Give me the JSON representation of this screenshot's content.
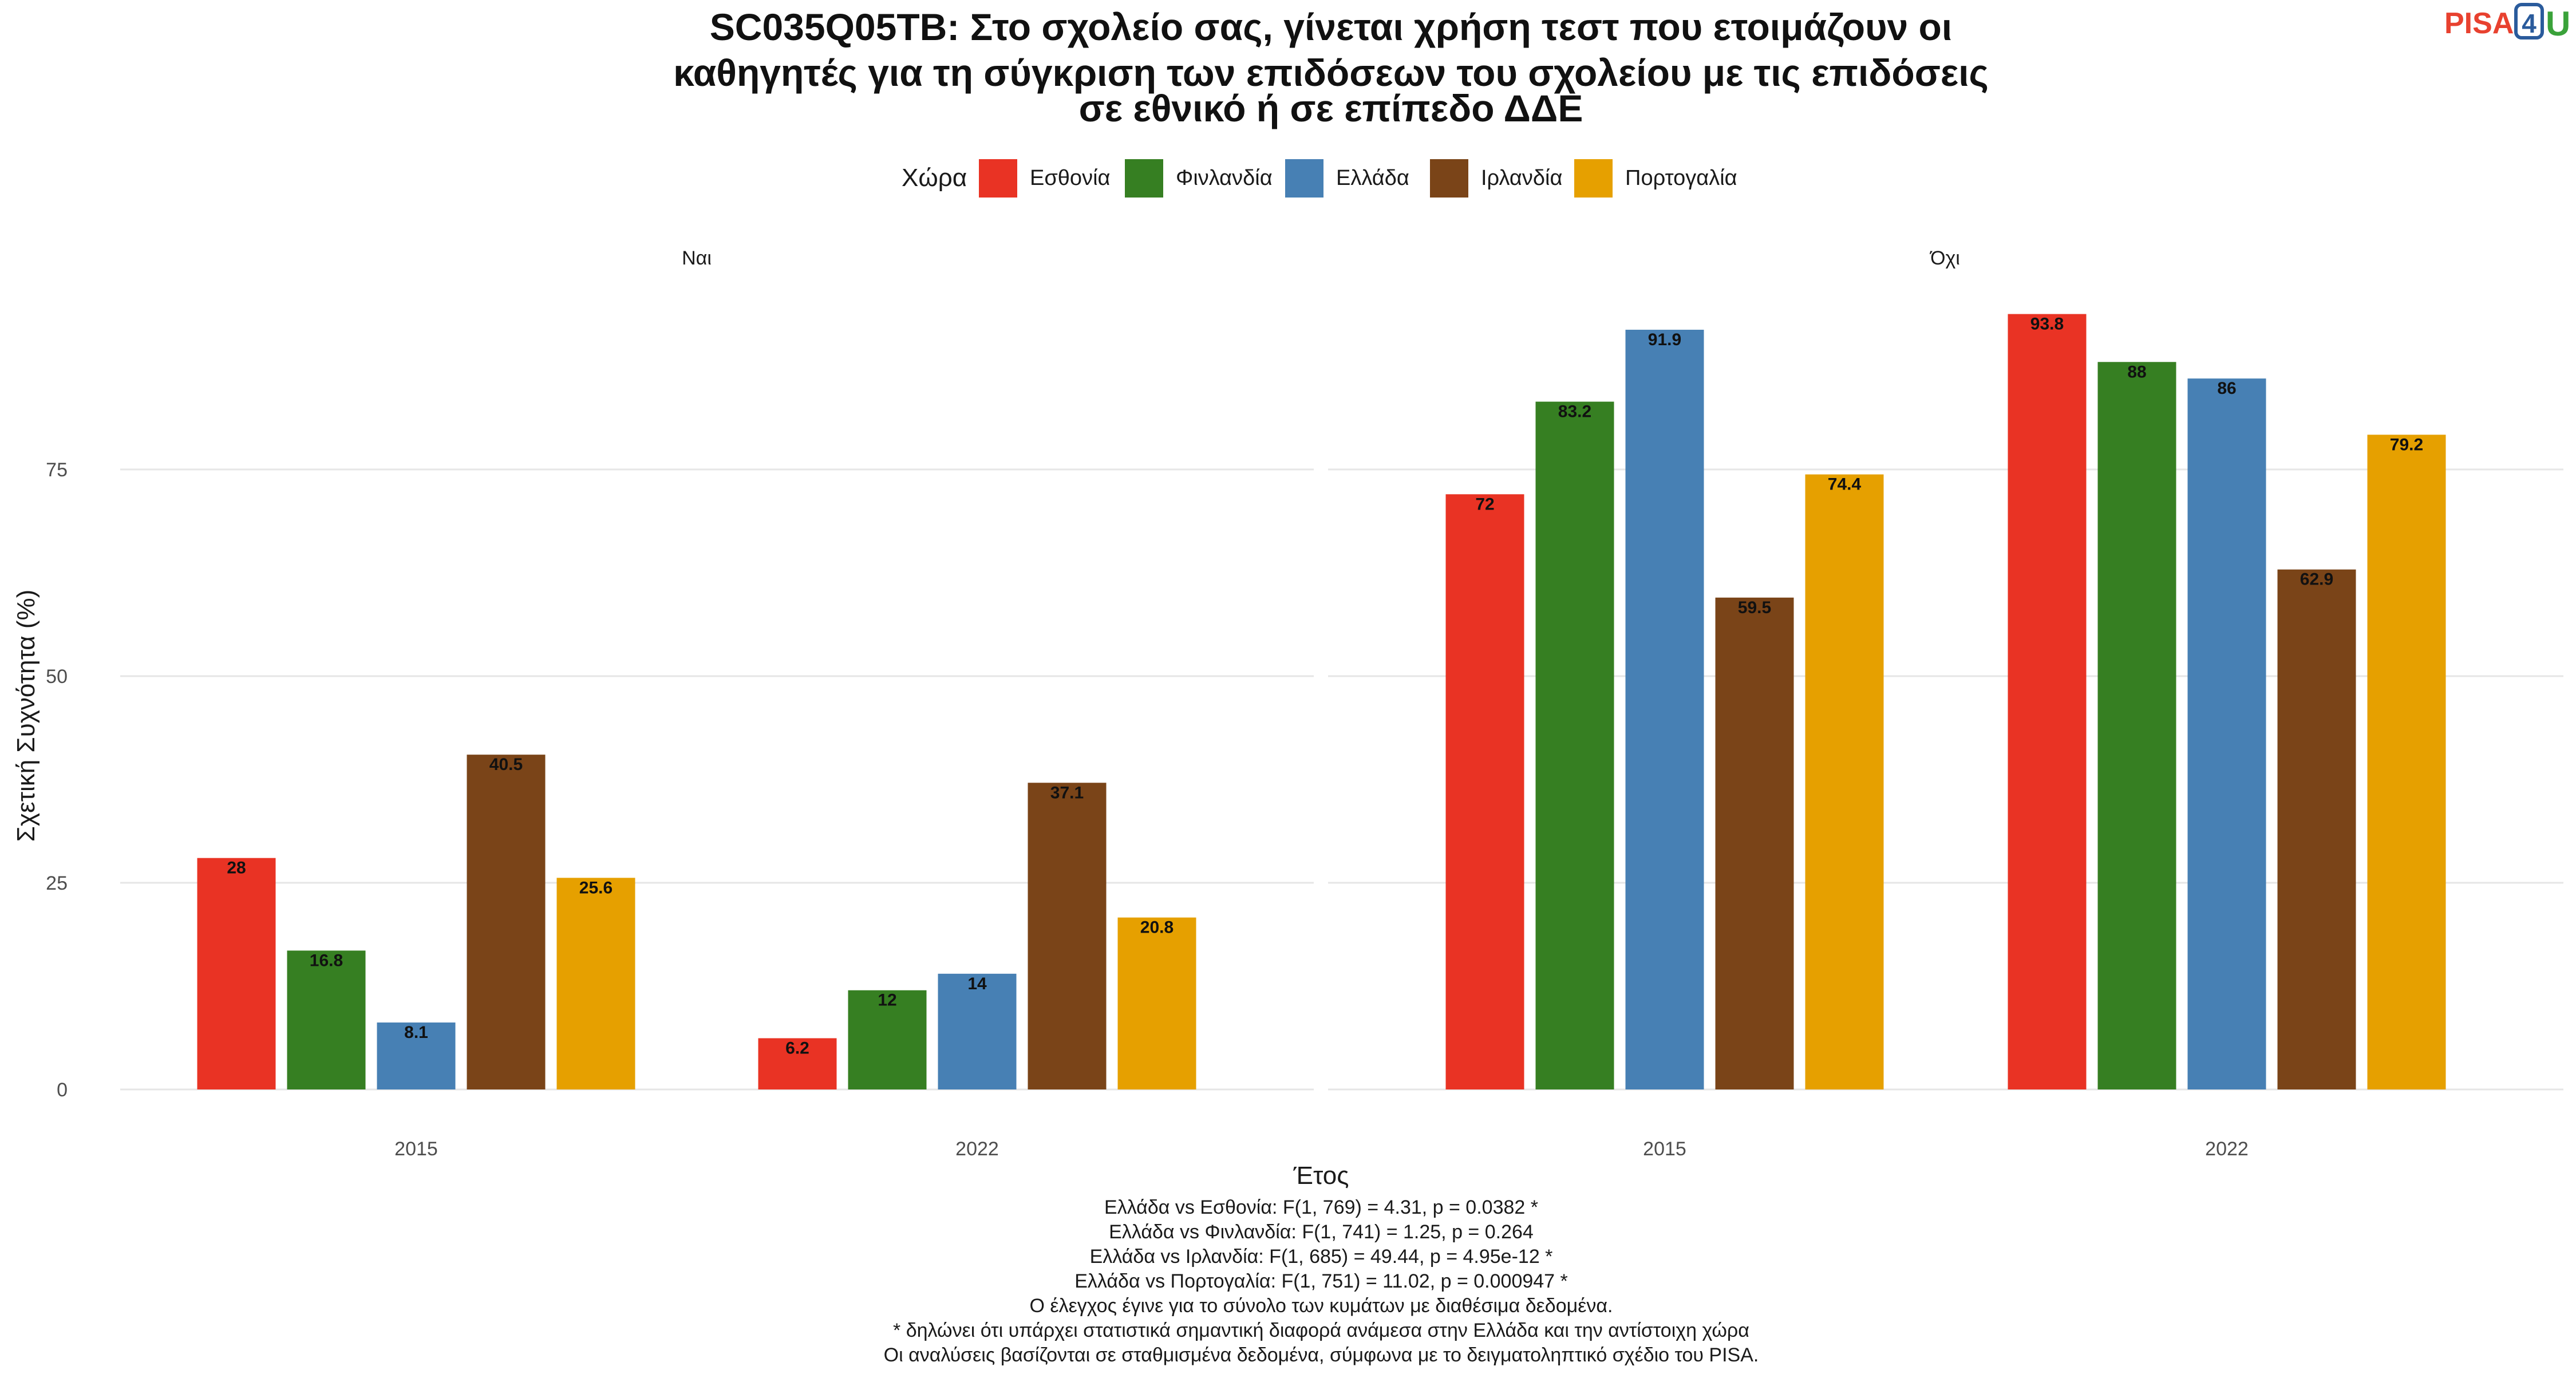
{
  "title_lines": [
    "SC035Q05TB: Στο σχολείο σας, γίνεται χρήση τεστ που ετοιμάζουν οι",
    "καθηγητές για τη σύγκριση των επιδόσεων του σχολείου με τις επιδόσεις",
    "σε εθνικό ή σε επίπεδο ΔΔΕ"
  ],
  "logo": {
    "text_left": "PISA",
    "text_box": "4",
    "text_right": "U",
    "colors": {
      "left": "#e8412f",
      "box": "#2a5b9c",
      "right": "#3aa23a"
    }
  },
  "legend": {
    "title": "Χώρα",
    "placement": "top"
  },
  "chart_data": {
    "type": "bar",
    "facets": [
      "Ναι",
      "Όχι"
    ],
    "categories": [
      "2015",
      "2022"
    ],
    "xlabel": "Έτος",
    "ylabel": "Σχετική Συχνότητα (%)",
    "yticks": [
      0,
      25,
      50,
      75
    ],
    "ylim": [
      0,
      98.5
    ],
    "grid": true,
    "series": [
      {
        "name": "Εσθονία",
        "color": "#e93324",
        "values": {
          "Ναι": [
            28,
            6.2
          ],
          "Όχι": [
            72,
            93.8
          ]
        },
        "labels": {
          "Ναι": [
            "28",
            "6.2"
          ],
          "Όχι": [
            "72",
            "93.8"
          ]
        }
      },
      {
        "name": "Φινλανδία",
        "color": "#367f22",
        "values": {
          "Ναι": [
            16.8,
            12
          ],
          "Όχι": [
            83.2,
            88
          ]
        },
        "labels": {
          "Ναι": [
            "16.8",
            "12"
          ],
          "Όχι": [
            "83.2",
            "88"
          ]
        }
      },
      {
        "name": "Ελλάδα",
        "color": "#4780b4",
        "values": {
          "Ναι": [
            8.1,
            14
          ],
          "Όχι": [
            91.9,
            86
          ]
        },
        "labels": {
          "Ναι": [
            "8.1",
            "14"
          ],
          "Όχι": [
            "91.9",
            "86"
          ]
        }
      },
      {
        "name": "Ιρλανδία",
        "color": "#7a4418",
        "values": {
          "Ναι": [
            40.5,
            37.1
          ],
          "Όχι": [
            59.5,
            62.9
          ]
        },
        "labels": {
          "Ναι": [
            "40.5",
            "37.1"
          ],
          "Όχι": [
            "59.5",
            "62.9"
          ]
        }
      },
      {
        "name": "Πορτογαλία",
        "color": "#e6a000",
        "values": {
          "Ναι": [
            25.6,
            20.8
          ],
          "Όχι": [
            74.4,
            79.2
          ]
        },
        "labels": {
          "Ναι": [
            "25.6",
            "20.8"
          ],
          "Όχι": [
            "74.4",
            "79.2"
          ]
        }
      }
    ]
  },
  "caption_lines": [
    "Ελλάδα vs Εσθονία: F(1, 769) = 4.31, p = 0.0382 *",
    "Ελλάδα vs Φινλανδία: F(1, 741) = 1.25, p = 0.264",
    "Ελλάδα vs Ιρλανδία: F(1, 685) = 49.44, p = 4.95e-12 *",
    "Ελλάδα vs Πορτογαλία: F(1, 751) = 11.02, p = 0.000947 *",
    "Ο έλεγχος έγινε για το σύνολο των κυμάτων με διαθέσιμα δεδομένα.",
    "* δηλώνει ότι υπάρχει στατιστικά σημαντική διαφορά ανάμεσα στην Ελλάδα και την αντίστοιχη χώρα",
    "Οι αναλύσεις βασίζονται σε σταθμισμένα δεδομένα, σύμφωνα με το δειγματοληπτικό σχέδιο του PISA."
  ]
}
